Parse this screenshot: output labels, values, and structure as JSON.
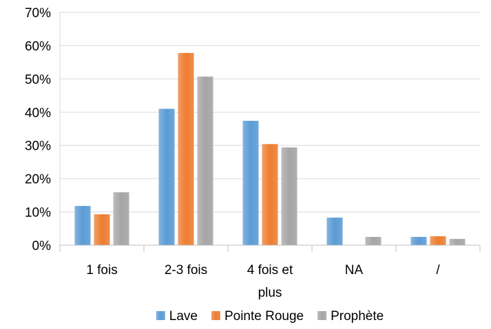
{
  "chart_data": {
    "type": "bar",
    "title": "",
    "xlabel": "",
    "ylabel": "",
    "categories": [
      "1 fois",
      "2-3 fois",
      "4 fois et plus",
      "NA",
      "/"
    ],
    "category_lines": [
      [
        "1 fois"
      ],
      [
        "2-3 fois"
      ],
      [
        "4 fois et",
        "plus"
      ],
      [
        "NA"
      ],
      [
        "/"
      ]
    ],
    "series": [
      {
        "name": "Lave",
        "color": "#5B9BD5",
        "values": [
          0.118,
          0.41,
          0.374,
          0.083,
          0.025
        ]
      },
      {
        "name": "Pointe Rouge",
        "color": "#ED7D31",
        "values": [
          0.093,
          0.578,
          0.304,
          0.0,
          0.027
        ]
      },
      {
        "name": "Prophète",
        "color": "#A5A5A5",
        "values": [
          0.159,
          0.507,
          0.294,
          0.025,
          0.019
        ]
      }
    ],
    "ylim": [
      0,
      0.7
    ],
    "yticks": [
      0,
      0.1,
      0.2,
      0.3,
      0.4,
      0.5,
      0.6,
      0.7
    ],
    "ytick_labels": [
      "0%",
      "10%",
      "20%",
      "30%",
      "40%",
      "50%",
      "60%",
      "70%"
    ],
    "grid": true,
    "legend_position": "bottom"
  }
}
